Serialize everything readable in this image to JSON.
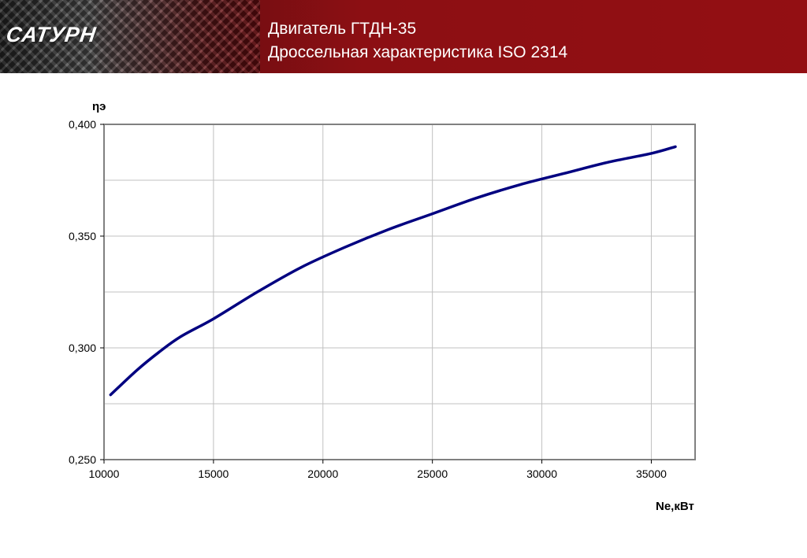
{
  "header": {
    "logo": "САТУРН",
    "title_line1": "Двигатель ГТДН-35",
    "title_line2": "Дроссельная характеристика ISO 2314"
  },
  "colors": {
    "header_bg": "#930f13",
    "series_line": "#000080",
    "grid": "#c0c0c0",
    "axis": "#808080"
  },
  "chart_data": {
    "type": "line",
    "title": "",
    "xlabel": "Ne,кВт",
    "ylabel": "ηэ",
    "xlim": [
      10000,
      37000
    ],
    "ylim": [
      0.25,
      0.4
    ],
    "xticks": [
      10000,
      15000,
      20000,
      25000,
      30000,
      35000
    ],
    "yticks": [
      0.25,
      0.3,
      0.35,
      0.4
    ],
    "ytick_labels": [
      "0,250",
      "0,300",
      "0,350",
      "0,400"
    ],
    "ygrid_minor": [
      0.275,
      0.325,
      0.375
    ],
    "grid": true,
    "legend": "none",
    "series": [
      {
        "x": [
          10300,
          11500,
          12500,
          13500,
          15000,
          17000,
          19000,
          21000,
          23000,
          25000,
          27000,
          29000,
          31000,
          33000,
          35000,
          36100
        ],
        "y": [
          0.279,
          0.29,
          0.298,
          0.305,
          0.313,
          0.325,
          0.336,
          0.345,
          0.353,
          0.36,
          0.367,
          0.373,
          0.378,
          0.383,
          0.387,
          0.39
        ]
      }
    ]
  }
}
